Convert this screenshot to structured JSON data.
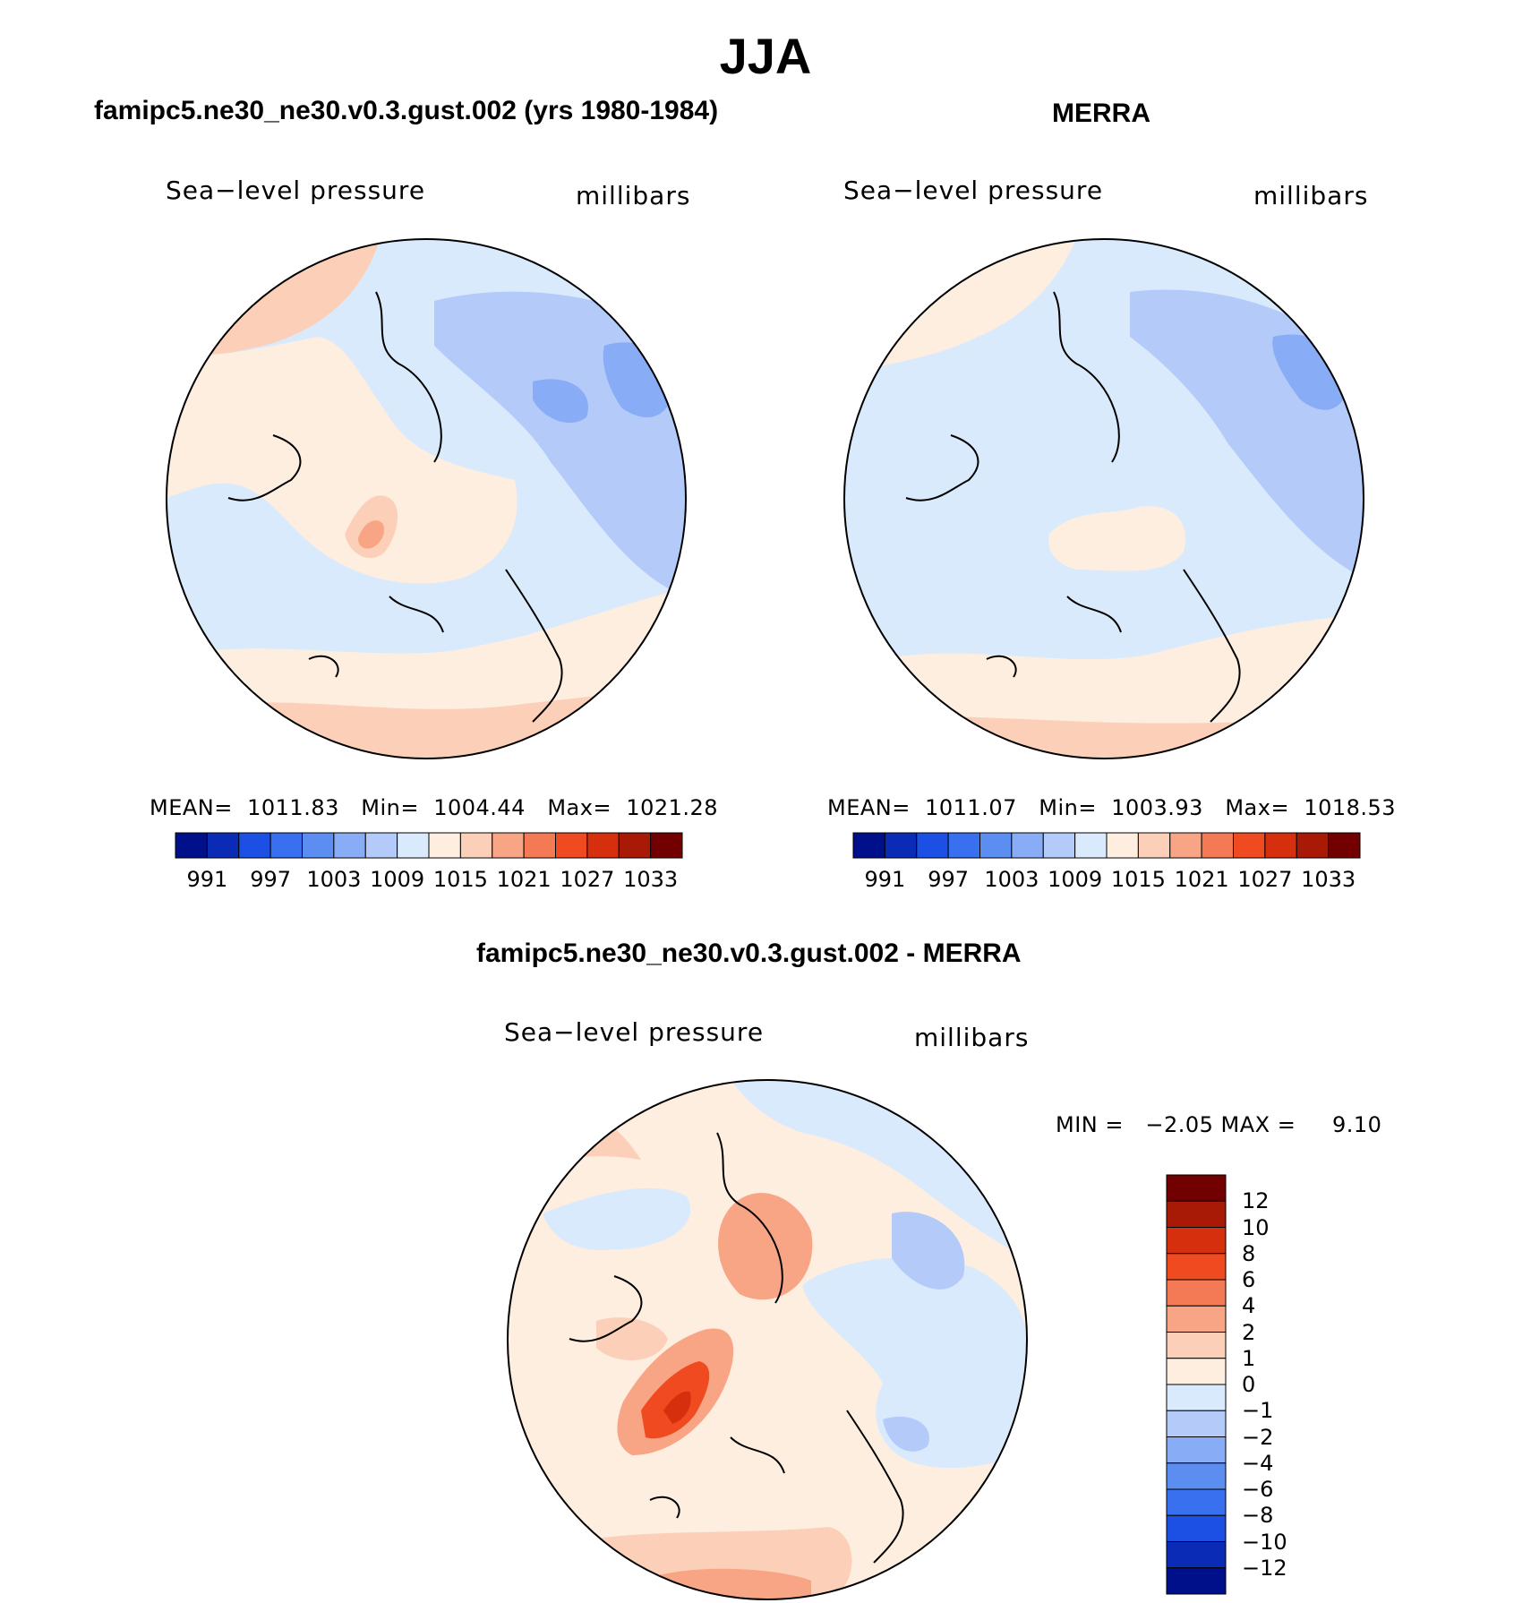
{
  "title": "JJA",
  "panels": [
    {
      "id": "model",
      "title": "famipc5.ne30_ne30.v0.3.gust.002 (yrs 1980-1984)",
      "variable": "Sea−level pressure",
      "units": "millibars",
      "stats": "MEAN=  1011.83   Min=  1004.44   Max=  1021.28",
      "colorbar_colors": [
        "#000f8a",
        "#0a2bb5",
        "#1c4fe4",
        "#3870ef",
        "#5c8ef2",
        "#88acf5",
        "#b4cbfa",
        "#daeafd",
        "#feeee0",
        "#fcd0b8",
        "#f8a585",
        "#f47a55",
        "#f04a20",
        "#d52f0d",
        "#a81a05",
        "#720000"
      ],
      "colorbar_labels": [
        "991",
        "997",
        "1003",
        "1009",
        "1015",
        "1021",
        "1027",
        "1033"
      ]
    },
    {
      "id": "obs",
      "title": "MERRA",
      "variable": "Sea−level pressure",
      "units": "millibars",
      "stats": "MEAN=  1011.07   Min=  1003.93   Max=  1018.53",
      "colorbar_colors": [
        "#000f8a",
        "#0a2bb5",
        "#1c4fe4",
        "#3870ef",
        "#5c8ef2",
        "#88acf5",
        "#b4cbfa",
        "#daeafd",
        "#feeee0",
        "#fcd0b8",
        "#f8a585",
        "#f47a55",
        "#f04a20",
        "#d52f0d",
        "#a81a05",
        "#720000"
      ],
      "colorbar_labels": [
        "991",
        "997",
        "1003",
        "1009",
        "1015",
        "1021",
        "1027",
        "1033"
      ]
    },
    {
      "id": "diff",
      "title": "famipc5.ne30_ne30.v0.3.gust.002 - MERRA",
      "variable": "Sea−level pressure",
      "units": "millibars",
      "stats": "MIN =   −2.05 MAX =     9.10",
      "colorbar_colors": [
        "#720000",
        "#a81a05",
        "#d52f0d",
        "#f04a20",
        "#f47a55",
        "#f8a585",
        "#fcd0b8",
        "#feeee0",
        "#daeafd",
        "#b4cbfa",
        "#88acf5",
        "#5c8ef2",
        "#3870ef",
        "#1c4fe4",
        "#0a2bb5",
        "#000f8a"
      ],
      "colorbar_labels": [
        "12",
        "10",
        "8",
        "6",
        "4",
        "2",
        "1",
        "0",
        "−1",
        "−2",
        "−4",
        "−6",
        "−8",
        "−10",
        "−12"
      ]
    }
  ]
}
